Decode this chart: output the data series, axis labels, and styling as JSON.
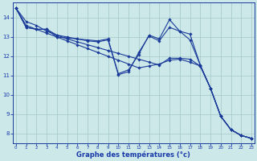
{
  "background_color": "#cce8e8",
  "grid_color": "#aacccc",
  "line_color": "#1a3a9a",
  "xlabel": "Graphe des températures (°c)",
  "xlabel_color": "#1a3aaa",
  "tick_color": "#1a3aaa",
  "xlim": [
    -0.3,
    23.3
  ],
  "ylim": [
    7.5,
    14.8
  ],
  "yticks": [
    8,
    9,
    10,
    11,
    12,
    13,
    14
  ],
  "xticks": [
    0,
    1,
    2,
    3,
    4,
    5,
    6,
    7,
    8,
    9,
    10,
    11,
    12,
    13,
    14,
    15,
    16,
    17,
    18,
    19,
    20,
    21,
    22,
    23
  ],
  "series": [
    {
      "x": [
        0,
        1,
        2,
        3,
        4,
        5,
        6,
        7,
        8,
        9,
        10,
        11,
        12,
        13,
        14,
        15,
        16,
        17,
        18,
        19,
        20,
        21,
        22,
        23
      ],
      "y": [
        14.5,
        13.8,
        13.6,
        13.3,
        13.1,
        12.9,
        12.75,
        12.6,
        12.45,
        12.3,
        12.15,
        12.0,
        11.85,
        11.7,
        11.55,
        11.9,
        11.9,
        11.85,
        11.5,
        10.35,
        8.9,
        8.2,
        7.9,
        7.75
      ]
    },
    {
      "x": [
        0,
        1,
        2,
        3,
        4,
        5,
        6,
        7,
        8,
        9,
        10,
        11,
        12,
        13,
        14,
        15,
        16,
        17,
        18,
        19,
        20,
        21,
        22,
        23
      ],
      "y": [
        14.5,
        13.6,
        13.4,
        13.2,
        13.0,
        12.8,
        12.6,
        12.4,
        12.2,
        12.0,
        11.8,
        11.6,
        11.4,
        11.5,
        11.6,
        11.8,
        11.85,
        11.7,
        11.5,
        10.35,
        8.9,
        8.2,
        7.9,
        7.75
      ]
    },
    {
      "x": [
        0,
        1,
        2,
        3,
        4,
        5,
        6,
        7,
        8,
        9,
        10,
        11,
        12,
        13,
        14,
        15,
        16,
        17,
        18,
        19,
        20,
        21,
        22,
        23
      ],
      "y": [
        14.5,
        13.5,
        13.4,
        13.4,
        13.1,
        13.0,
        12.9,
        12.85,
        12.8,
        12.9,
        11.1,
        11.3,
        12.1,
        13.1,
        12.9,
        13.9,
        13.3,
        13.15,
        11.55,
        10.35,
        8.9,
        8.2,
        7.9,
        7.75
      ]
    },
    {
      "x": [
        0,
        1,
        2,
        3,
        4,
        5,
        6,
        7,
        8,
        9,
        10,
        11,
        12,
        13,
        14,
        15,
        16,
        17,
        18,
        19,
        20,
        21,
        22,
        23
      ],
      "y": [
        14.5,
        13.5,
        13.4,
        13.4,
        13.0,
        12.95,
        12.9,
        12.8,
        12.75,
        12.85,
        11.05,
        11.2,
        12.2,
        13.05,
        12.8,
        13.5,
        13.3,
        12.85,
        11.55,
        10.35,
        8.9,
        8.2,
        7.9,
        7.75
      ]
    }
  ]
}
